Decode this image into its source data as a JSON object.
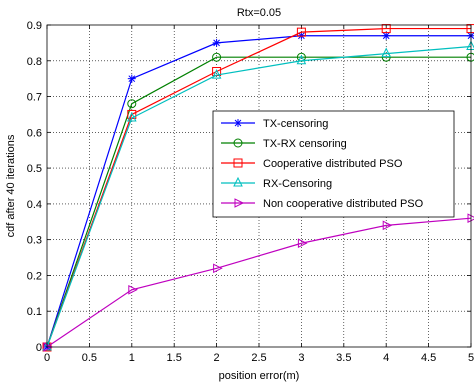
{
  "chart_data": {
    "type": "line",
    "title": "Rtx=0.05",
    "xlabel": "position error(m)",
    "ylabel": "cdf after 40 iterations",
    "xlim": [
      0,
      5
    ],
    "ylim": [
      0,
      0.9
    ],
    "xticks": [
      "0",
      "0.5",
      "1",
      "1.5",
      "2",
      "2.5",
      "3",
      "3.5",
      "4",
      "4.5",
      "5"
    ],
    "yticks": [
      "0",
      "0.1",
      "0.2",
      "0.3",
      "0.4",
      "0.5",
      "0.6",
      "0.7",
      "0.8",
      "0.9"
    ],
    "grid": true,
    "legend_position": "center-right",
    "x": [
      0,
      1,
      2,
      3,
      4,
      5
    ],
    "series": [
      {
        "name": "TX-censoring",
        "color": "#0000ff",
        "marker": "star",
        "values": [
          0,
          0.75,
          0.85,
          0.87,
          0.87,
          0.87
        ]
      },
      {
        "name": "TX-RX censoring",
        "color": "#008000",
        "marker": "circle",
        "values": [
          0,
          0.68,
          0.81,
          0.81,
          0.81,
          0.81
        ]
      },
      {
        "name": "Cooperative distributed PSO",
        "color": "#ff0000",
        "marker": "square",
        "values": [
          0,
          0.65,
          0.77,
          0.88,
          0.89,
          0.89
        ]
      },
      {
        "name": "RX-Censoring",
        "color": "#00bfbf",
        "marker": "triangle-up",
        "values": [
          0,
          0.64,
          0.76,
          0.8,
          0.82,
          0.84
        ]
      },
      {
        "name": "Non cooperative distributed PSO",
        "color": "#bf00bf",
        "marker": "triangle-right",
        "values": [
          0,
          0.16,
          0.22,
          0.29,
          0.34,
          0.36
        ]
      }
    ]
  }
}
